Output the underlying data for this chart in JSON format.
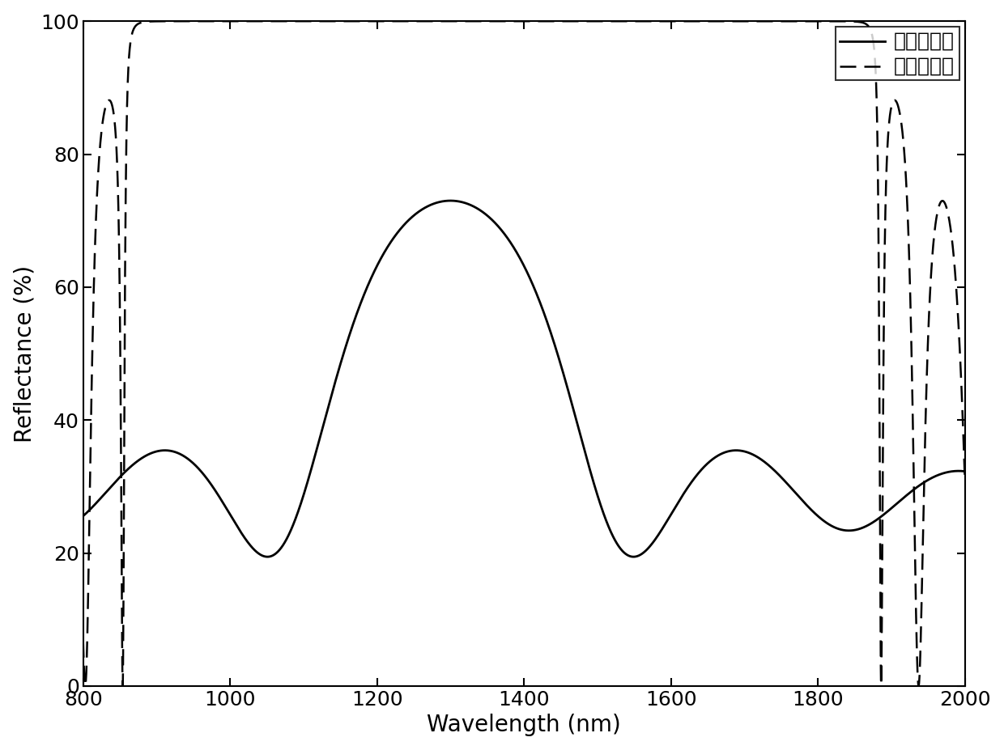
{
  "xlabel": "Wavelength (nm)",
  "ylabel": "Reflectance (%)",
  "xlim": [
    800,
    2000
  ],
  "ylim": [
    0,
    100
  ],
  "xticks": [
    800,
    1000,
    1200,
    1400,
    1600,
    1800,
    2000
  ],
  "yticks": [
    0,
    20,
    40,
    60,
    80,
    100
  ],
  "legend_labels": [
    "刻蛊前样品",
    "刻蛊后样品"
  ],
  "background_color": "#ffffff",
  "line_color": "#000000",
  "label_fontsize": 20,
  "tick_fontsize": 18,
  "legend_fontsize": 18
}
